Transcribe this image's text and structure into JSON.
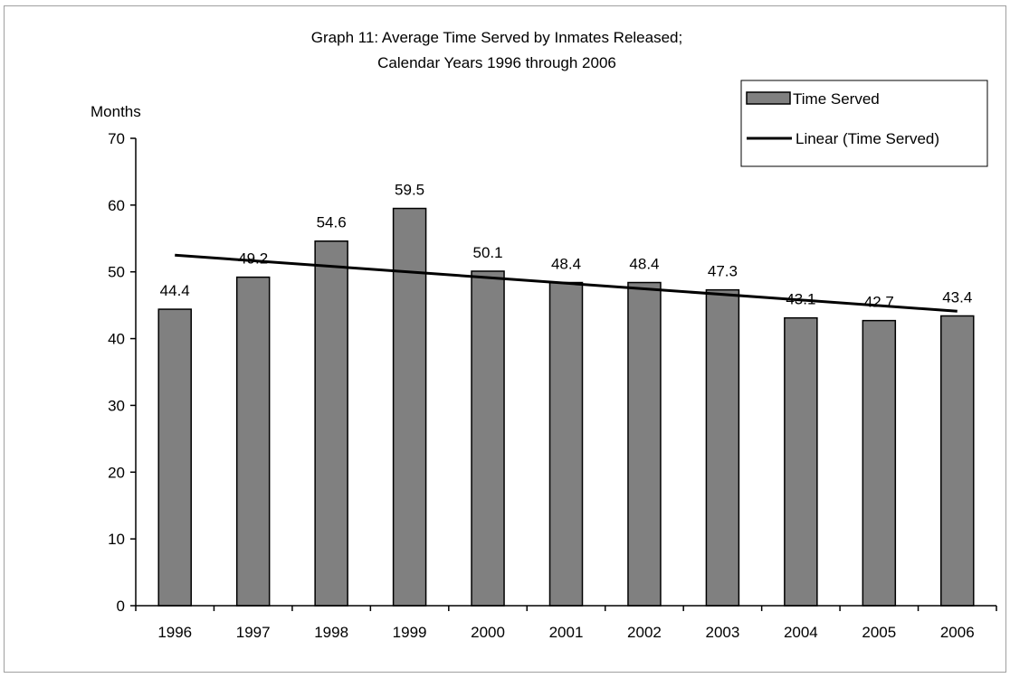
{
  "chart_data": {
    "type": "bar",
    "title": "Graph 11: Average Time Served by Inmates Released;",
    "subtitle": "Calendar Years 1996 through 2006",
    "ylabel": "Months",
    "xlabel": "",
    "categories": [
      "1996",
      "1997",
      "1998",
      "1999",
      "2000",
      "2001",
      "2002",
      "2003",
      "2004",
      "2005",
      "2006"
    ],
    "series": [
      {
        "name": "Time Served",
        "values": [
          44.4,
          49.2,
          54.6,
          59.5,
          50.1,
          48.4,
          48.4,
          47.3,
          43.1,
          42.7,
          43.4
        ],
        "data_labels": [
          "44.4",
          "49.2",
          "54.6",
          "59.5",
          "50.1",
          "48.4",
          "48.4",
          "47.3",
          "43.1",
          "42.7",
          "43.4"
        ],
        "color": "#808080"
      }
    ],
    "trendline": {
      "name": "Linear (Time Served)",
      "type": "linear",
      "start": 52.5,
      "end": 44.1,
      "color": "#000000"
    },
    "ylim": [
      0,
      70
    ],
    "yticks": [
      0,
      10,
      20,
      30,
      40,
      50,
      60,
      70
    ],
    "ytick_labels": [
      "0",
      "10",
      "20",
      "30",
      "40",
      "50",
      "60",
      "70"
    ],
    "legend": {
      "position": "top-right",
      "entries": [
        "Time Served",
        "Linear (Time Served)"
      ]
    },
    "grid": false
  }
}
